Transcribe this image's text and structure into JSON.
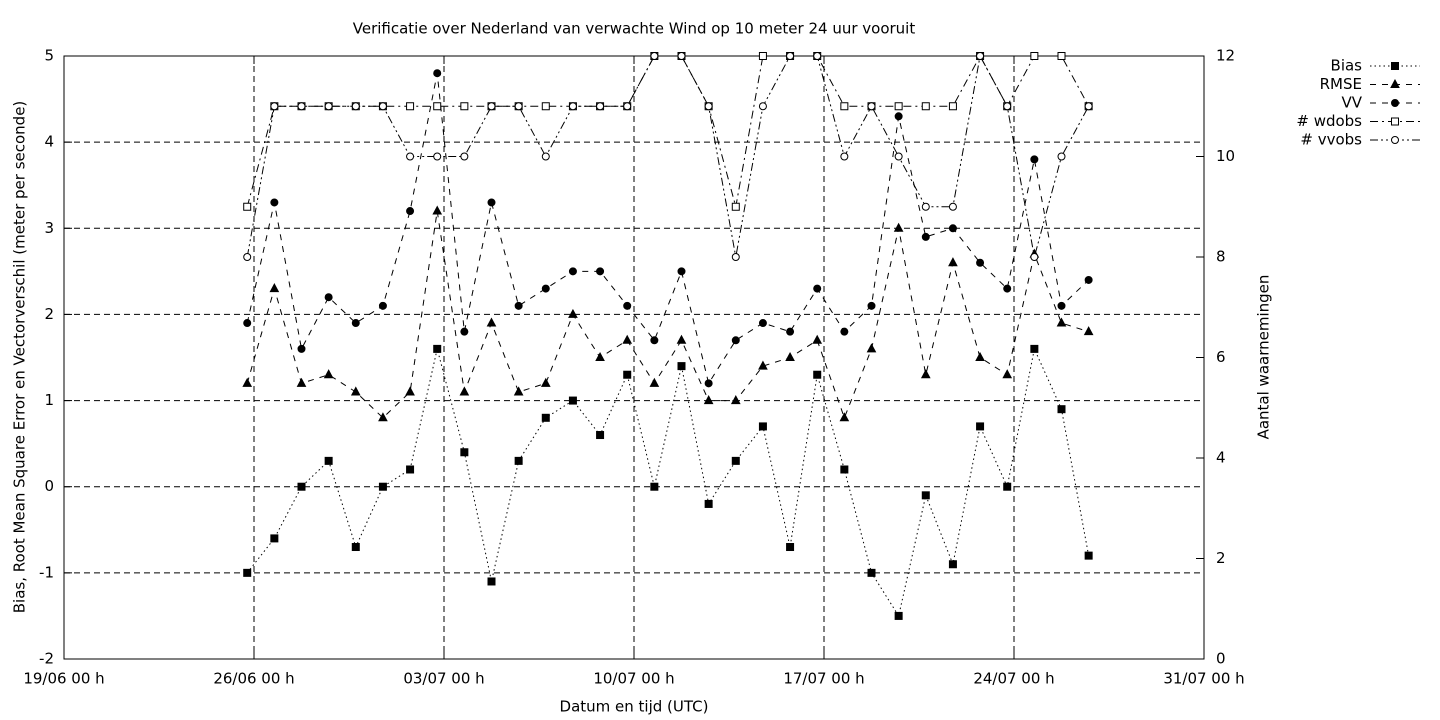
{
  "chart_data": {
    "type": "line",
    "title": "Verificatie over Nederland van verwachte Wind op 10 meter 24 uur vooruit",
    "xlabel": "Datum en tijd (UTC)",
    "ylabel": "Bias, Root Mean Square Error en Vectorverschil (meter per seconde)",
    "y2label": "Aantal waarnemingen",
    "x": [
      "25/06 18 h",
      "26/06 18 h",
      "27/06 18 h",
      "28/06 18 h",
      "29/06 18 h",
      "30/06 18 h",
      "01/07 18 h",
      "02/07 18 h",
      "03/07 18 h",
      "04/07 18 h",
      "05/07 18 h",
      "06/07 18 h",
      "07/07 18 h",
      "08/07 18 h",
      "09/07 18 h",
      "10/07 18 h",
      "11/07 18 h",
      "12/07 18 h",
      "13/07 18 h",
      "14/07 18 h",
      "15/07 18 h",
      "16/07 18 h",
      "17/07 18 h",
      "18/07 18 h",
      "19/07 18 h",
      "20/07 18 h",
      "21/07 18 h",
      "22/07 18 h",
      "23/07 18 h",
      "24/07 18 h",
      "25/07 18 h",
      "26/07 18 h"
    ],
    "xlim": [
      "19/06 00 h",
      "31/07 00 h"
    ],
    "xticks": [
      "19/06 00 h",
      "26/06 00 h",
      "03/07 00 h",
      "10/07 00 h",
      "17/07 00 h",
      "24/07 00 h",
      "31/07 00 h"
    ],
    "ylim": [
      -2,
      5
    ],
    "yticks": [
      -2,
      -1,
      0,
      1,
      2,
      3,
      4,
      5
    ],
    "y2lim": [
      0,
      12
    ],
    "y2ticks": [
      0,
      2,
      4,
      6,
      8,
      10,
      12
    ],
    "grid": true,
    "legend": "right",
    "series": [
      {
        "name": "Bias",
        "color": "#000000",
        "dash": "dotted",
        "marker": "filled-square",
        "values": [
          -1.0,
          -0.6,
          0,
          0.3,
          -0.7,
          0,
          0.2,
          1.6,
          0.4,
          -1.1,
          0.3,
          0.8,
          1.0,
          0.6,
          1.3,
          0,
          1.4,
          -0.2,
          0.3,
          0.7,
          -0.7,
          1.3,
          0.2,
          -1.0,
          -1.5,
          -0.1,
          -0.9,
          0.7,
          0,
          1.6,
          0.9,
          -0.8
        ]
      },
      {
        "name": "RMSE",
        "color": "#000000",
        "dash": "dashed",
        "marker": "filled-triangle",
        "values": [
          1.2,
          2.3,
          1.2,
          1.3,
          1.1,
          0.8,
          1.1,
          3.2,
          1.1,
          1.9,
          1.1,
          1.2,
          2.0,
          1.5,
          1.7,
          1.2,
          1.7,
          1.0,
          1.0,
          1.4,
          1.5,
          1.7,
          0.8,
          1.6,
          3.0,
          1.3,
          2.6,
          1.5,
          1.3,
          2.7,
          1.9,
          1.8
        ]
      },
      {
        "name": "VV",
        "color": "#000000",
        "dash": "dashed",
        "marker": "filled-circle",
        "values": [
          1.9,
          3.3,
          1.6,
          2.2,
          1.9,
          2.1,
          3.2,
          4.8,
          1.8,
          3.3,
          2.1,
          2.3,
          2.5,
          2.5,
          2.1,
          1.7,
          2.5,
          1.2,
          1.7,
          1.9,
          1.8,
          2.3,
          1.8,
          2.1,
          4.3,
          2.9,
          3.0,
          2.6,
          2.3,
          3.8,
          2.1,
          2.4
        ]
      },
      {
        "name": "# wdobs",
        "color": "#000000",
        "dash": "dash-dot",
        "marker": "open-square",
        "axis": "y2",
        "values": [
          9,
          11,
          11,
          11,
          11,
          11,
          11,
          11,
          11,
          11,
          11,
          11,
          11,
          11,
          11,
          12,
          12,
          11,
          9,
          12,
          12,
          12,
          11,
          11,
          11,
          11,
          11,
          12,
          11,
          12,
          12,
          11
        ]
      },
      {
        "name": "# vvobs",
        "color": "#000000",
        "dash": "dash-dot-dot",
        "marker": "open-circle",
        "axis": "y2",
        "values": [
          8,
          11,
          11,
          11,
          11,
          11,
          10,
          10,
          10,
          11,
          11,
          10,
          11,
          11,
          11,
          12,
          12,
          11,
          8,
          11,
          12,
          12,
          10,
          11,
          10,
          9,
          9,
          12,
          11,
          8,
          10,
          11
        ]
      }
    ]
  }
}
